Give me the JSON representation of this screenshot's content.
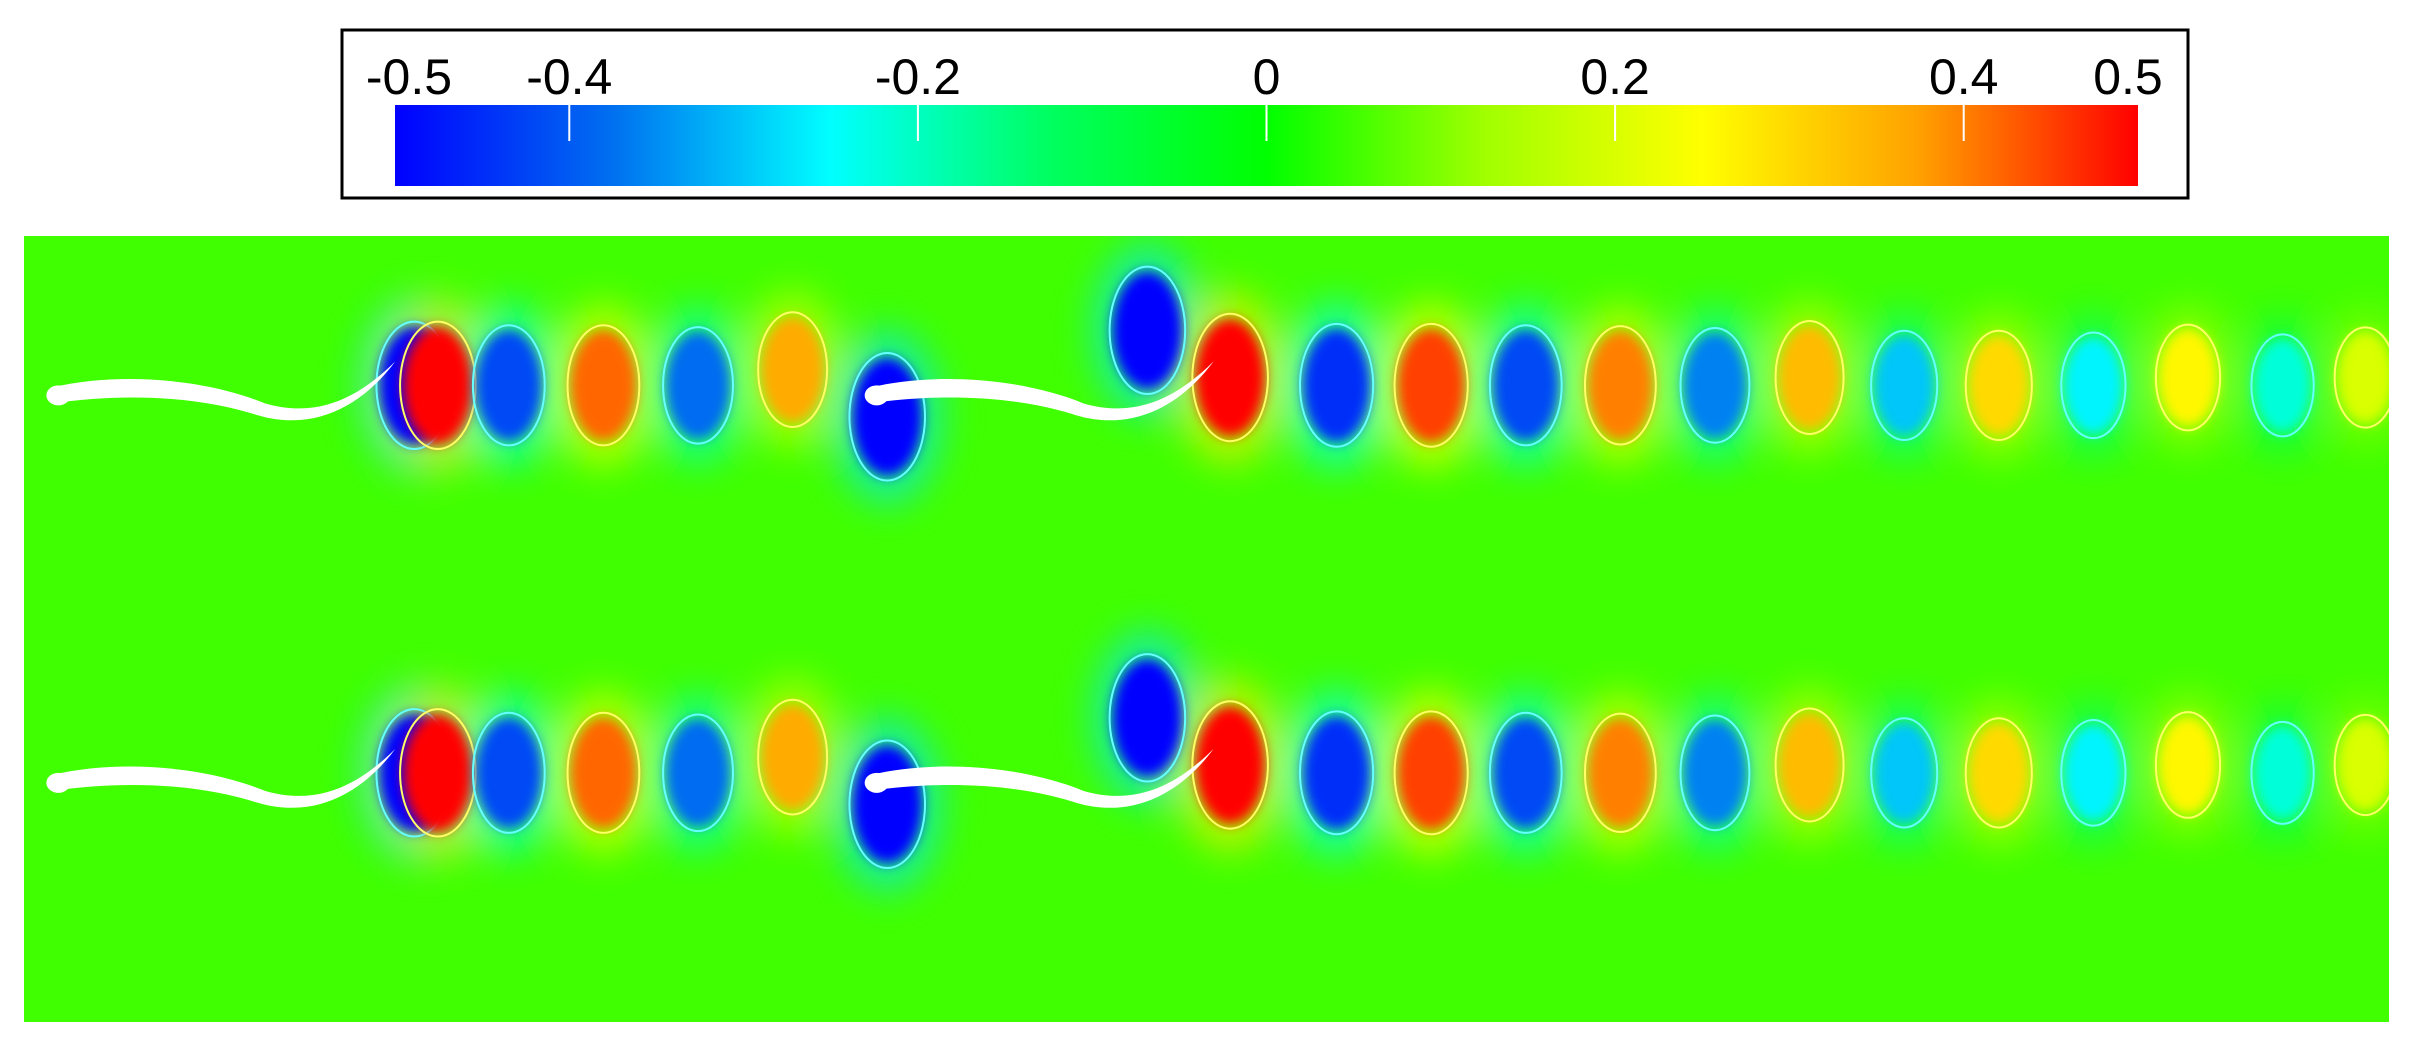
{
  "chart_data": {
    "type": "heatmap",
    "title": "",
    "xlabel": "",
    "ylabel": "",
    "colorbar": {
      "min": -0.5,
      "max": 0.5,
      "ticks": [
        -0.5,
        -0.4,
        -0.2,
        0,
        0.2,
        0.4,
        0.5
      ],
      "tick_labels": [
        "-0.5",
        "-0.4",
        "-0.2",
        "0",
        "0.2",
        "0.4",
        "0.5"
      ],
      "colormap": [
        "#0000ff",
        "#0070f0",
        "#00ffff",
        "#00ff60",
        "#00ff00",
        "#a0ff00",
        "#ffff00",
        "#ffa000",
        "#ff0000"
      ],
      "location": "top"
    },
    "background_value": 0.05,
    "rows": 2,
    "swimmers_per_row": 2,
    "swimmer_color": "#ffffff",
    "contour_colors": {
      "positive": "#ffff66",
      "negative": "#66ffff"
    },
    "vortices": [
      {
        "x": 0.165,
        "y": 0.19,
        "value": -0.5
      },
      {
        "x": 0.175,
        "y": 0.19,
        "value": 0.5
      },
      {
        "x": 0.205,
        "y": 0.19,
        "value": -0.42
      },
      {
        "x": 0.245,
        "y": 0.19,
        "value": 0.42
      },
      {
        "x": 0.285,
        "y": 0.19,
        "value": -0.38
      },
      {
        "x": 0.325,
        "y": 0.17,
        "value": 0.36
      },
      {
        "x": 0.365,
        "y": 0.23,
        "value": -0.5
      },
      {
        "x": 0.475,
        "y": 0.12,
        "value": -0.5
      },
      {
        "x": 0.51,
        "y": 0.18,
        "value": 0.5
      },
      {
        "x": 0.555,
        "y": 0.19,
        "value": -0.45
      },
      {
        "x": 0.595,
        "y": 0.19,
        "value": 0.45
      },
      {
        "x": 0.635,
        "y": 0.19,
        "value": -0.42
      },
      {
        "x": 0.675,
        "y": 0.19,
        "value": 0.4
      },
      {
        "x": 0.715,
        "y": 0.19,
        "value": -0.36
      },
      {
        "x": 0.755,
        "y": 0.18,
        "value": 0.34
      },
      {
        "x": 0.795,
        "y": 0.19,
        "value": -0.3
      },
      {
        "x": 0.835,
        "y": 0.19,
        "value": 0.3
      },
      {
        "x": 0.875,
        "y": 0.19,
        "value": -0.26
      },
      {
        "x": 0.915,
        "y": 0.18,
        "value": 0.26
      },
      {
        "x": 0.955,
        "y": 0.19,
        "value": -0.22
      },
      {
        "x": 0.99,
        "y": 0.18,
        "value": 0.2
      }
    ]
  }
}
